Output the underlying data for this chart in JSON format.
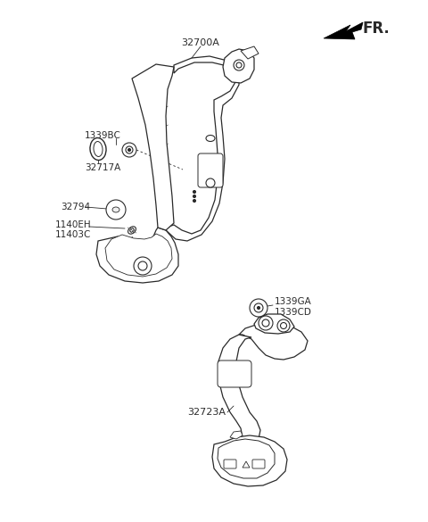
{
  "background_color": "#ffffff",
  "line_color": "#2a2a2a",
  "fr_label": "FR.",
  "parts": {
    "main_pedal_label": "32700A",
    "grommet_label": "1339BC",
    "stopper_label": "32717A",
    "cap_label": "32794",
    "bolt1_label": "1140EH",
    "bolt2_label": "11403C",
    "grommet2_label": "1339GA",
    "grommet3_label": "1339CD",
    "bracket_label": "32723A"
  },
  "fig_w": 4.8,
  "fig_h": 5.85,
  "dpi": 100
}
